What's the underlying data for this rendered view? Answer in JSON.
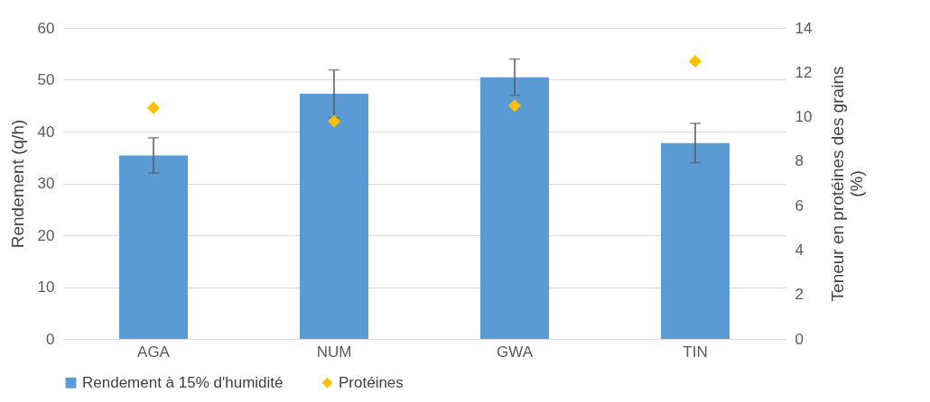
{
  "chart_data": {
    "type": "bar",
    "categories": [
      "AGA",
      "NUM",
      "GWA",
      "TIN"
    ],
    "ylabel": "Rendement (q/h)",
    "y2label": "Teneur en protéines des grains (%)",
    "ylim": [
      0,
      60
    ],
    "yticks": [
      0,
      10,
      20,
      30,
      40,
      50,
      60
    ],
    "y2lim": [
      0,
      14
    ],
    "y2ticks": [
      0,
      2,
      4,
      6,
      8,
      10,
      12,
      14
    ],
    "grid": "y",
    "legend": "bottom",
    "series": [
      {
        "name": "Rendement à 15% d'humidité",
        "color": "#5b9bd5",
        "values": [
          35.4,
          47.3,
          50.5,
          37.8
        ],
        "errors": [
          3.4,
          4.6,
          3.5,
          3.8
        ]
      },
      {
        "name": "Protéines",
        "type": "scatter",
        "axis": "y2",
        "marker": "diamond",
        "color": "#ffc000",
        "values": [
          10.4,
          9.8,
          10.5,
          12.5
        ]
      }
    ]
  }
}
